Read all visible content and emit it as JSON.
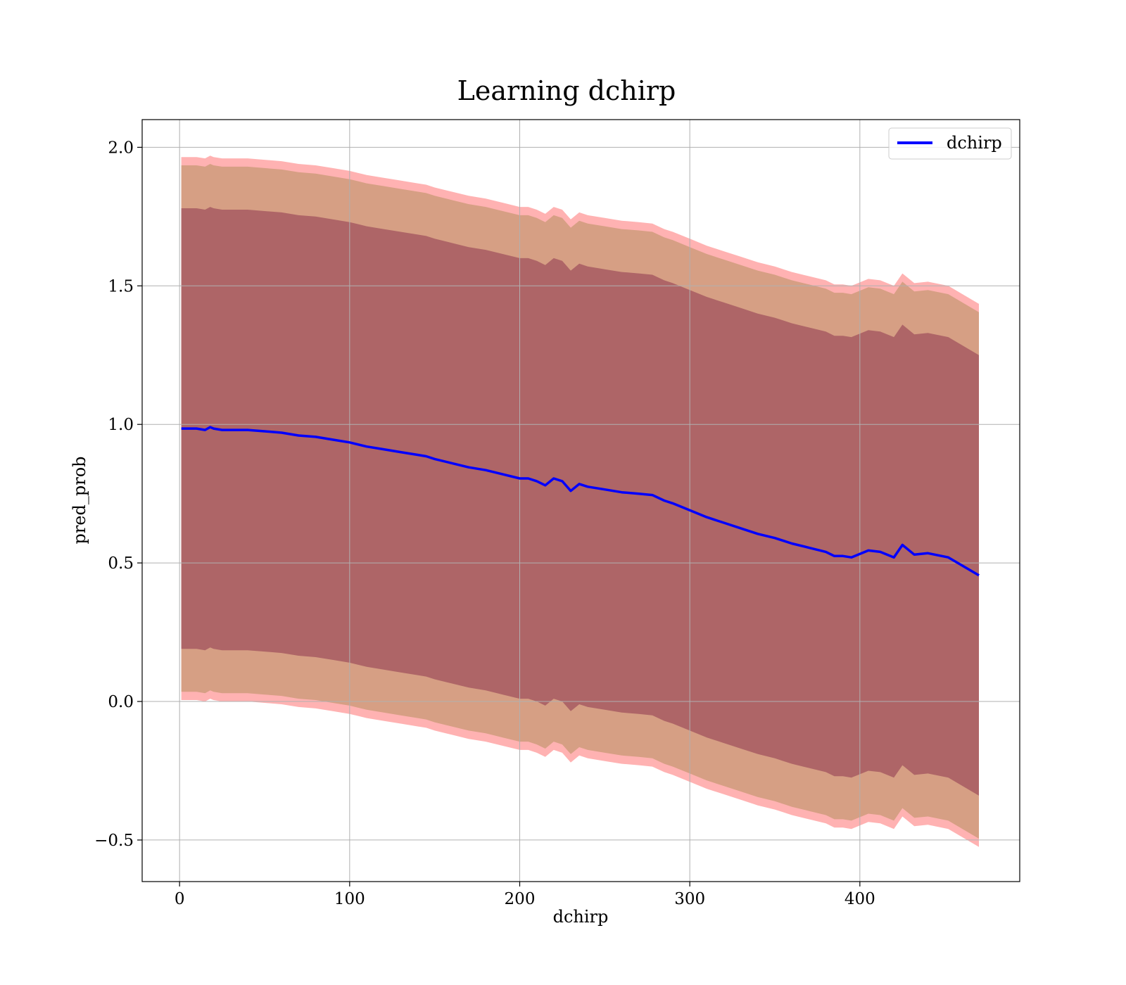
{
  "chart_data": {
    "type": "line",
    "title": "Learning dchirp",
    "xlabel": "dchirp",
    "ylabel": "pred_prob",
    "xlim": [
      -22,
      494
    ],
    "ylim": [
      -0.65,
      2.1
    ],
    "xticks": [
      0,
      100,
      200,
      300,
      400
    ],
    "xtick_labels": [
      "0",
      "100",
      "200",
      "300",
      "400"
    ],
    "yticks": [
      -0.5,
      0.0,
      0.5,
      1.0,
      1.5,
      2.0
    ],
    "ytick_labels": [
      "−0.5",
      "0.0",
      "0.5",
      "1.0",
      "1.5",
      "2.0"
    ],
    "grid": true,
    "legend": {
      "position": "top-right",
      "entries": [
        "dchirp"
      ]
    },
    "colors": {
      "line": "#0000ff",
      "band": "#ff0000",
      "inner_band": "#7f1f44",
      "mid_band": "#8a7a2f",
      "grid": "#b0b0b0"
    },
    "series": [
      {
        "name": "dchirp",
        "x": [
          1,
          10,
          15,
          18,
          20,
          25,
          30,
          40,
          50,
          60,
          70,
          80,
          90,
          100,
          110,
          120,
          130,
          140,
          145,
          150,
          160,
          170,
          180,
          190,
          200,
          205,
          210,
          215,
          220,
          225,
          230,
          235,
          240,
          250,
          260,
          270,
          278,
          285,
          290,
          300,
          310,
          320,
          330,
          340,
          350,
          355,
          360,
          370,
          380,
          385,
          390,
          395,
          405,
          412,
          420,
          425,
          432,
          440,
          452,
          470
        ],
        "y": [
          0.985,
          0.985,
          0.98,
          0.99,
          0.985,
          0.98,
          0.98,
          0.98,
          0.975,
          0.97,
          0.96,
          0.955,
          0.945,
          0.935,
          0.92,
          0.91,
          0.9,
          0.89,
          0.885,
          0.875,
          0.86,
          0.845,
          0.835,
          0.82,
          0.805,
          0.805,
          0.795,
          0.78,
          0.805,
          0.795,
          0.76,
          0.785,
          0.775,
          0.765,
          0.755,
          0.75,
          0.745,
          0.725,
          0.715,
          0.69,
          0.665,
          0.645,
          0.625,
          0.605,
          0.59,
          0.58,
          0.57,
          0.555,
          0.54,
          0.525,
          0.525,
          0.52,
          0.545,
          0.54,
          0.52,
          0.565,
          0.53,
          0.535,
          0.52,
          0.455
        ]
      }
    ],
    "bands": [
      {
        "label": "",
        "offset": 0.98
      },
      {
        "label": "",
        "offset": 0.95
      },
      {
        "label": "",
        "offset": 0.795
      }
    ]
  }
}
